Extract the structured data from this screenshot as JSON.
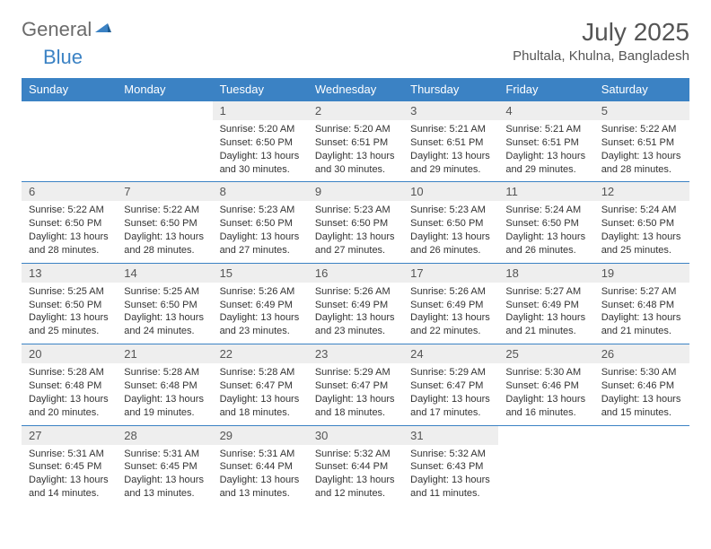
{
  "logo": {
    "text1": "General",
    "text2": "Blue",
    "general_color": "#6b6b6b",
    "blue_color": "#3b82c4"
  },
  "title": "July 2025",
  "location": "Phultala, Khulna, Bangladesh",
  "colors": {
    "header_bg": "#3b82c4",
    "header_text": "#ffffff",
    "daynum_bg": "#eeeeee",
    "daynum_text": "#555555",
    "body_text": "#333333",
    "border": "#3b82c4",
    "title_color": "#555555"
  },
  "day_headers": [
    "Sunday",
    "Monday",
    "Tuesday",
    "Wednesday",
    "Thursday",
    "Friday",
    "Saturday"
  ],
  "weeks": [
    [
      {
        "empty": true
      },
      {
        "empty": true
      },
      {
        "num": "1",
        "sunrise": "Sunrise: 5:20 AM",
        "sunset": "Sunset: 6:50 PM",
        "daylight": "Daylight: 13 hours and 30 minutes."
      },
      {
        "num": "2",
        "sunrise": "Sunrise: 5:20 AM",
        "sunset": "Sunset: 6:51 PM",
        "daylight": "Daylight: 13 hours and 30 minutes."
      },
      {
        "num": "3",
        "sunrise": "Sunrise: 5:21 AM",
        "sunset": "Sunset: 6:51 PM",
        "daylight": "Daylight: 13 hours and 29 minutes."
      },
      {
        "num": "4",
        "sunrise": "Sunrise: 5:21 AM",
        "sunset": "Sunset: 6:51 PM",
        "daylight": "Daylight: 13 hours and 29 minutes."
      },
      {
        "num": "5",
        "sunrise": "Sunrise: 5:22 AM",
        "sunset": "Sunset: 6:51 PM",
        "daylight": "Daylight: 13 hours and 28 minutes."
      }
    ],
    [
      {
        "num": "6",
        "sunrise": "Sunrise: 5:22 AM",
        "sunset": "Sunset: 6:50 PM",
        "daylight": "Daylight: 13 hours and 28 minutes."
      },
      {
        "num": "7",
        "sunrise": "Sunrise: 5:22 AM",
        "sunset": "Sunset: 6:50 PM",
        "daylight": "Daylight: 13 hours and 28 minutes."
      },
      {
        "num": "8",
        "sunrise": "Sunrise: 5:23 AM",
        "sunset": "Sunset: 6:50 PM",
        "daylight": "Daylight: 13 hours and 27 minutes."
      },
      {
        "num": "9",
        "sunrise": "Sunrise: 5:23 AM",
        "sunset": "Sunset: 6:50 PM",
        "daylight": "Daylight: 13 hours and 27 minutes."
      },
      {
        "num": "10",
        "sunrise": "Sunrise: 5:23 AM",
        "sunset": "Sunset: 6:50 PM",
        "daylight": "Daylight: 13 hours and 26 minutes."
      },
      {
        "num": "11",
        "sunrise": "Sunrise: 5:24 AM",
        "sunset": "Sunset: 6:50 PM",
        "daylight": "Daylight: 13 hours and 26 minutes."
      },
      {
        "num": "12",
        "sunrise": "Sunrise: 5:24 AM",
        "sunset": "Sunset: 6:50 PM",
        "daylight": "Daylight: 13 hours and 25 minutes."
      }
    ],
    [
      {
        "num": "13",
        "sunrise": "Sunrise: 5:25 AM",
        "sunset": "Sunset: 6:50 PM",
        "daylight": "Daylight: 13 hours and 25 minutes."
      },
      {
        "num": "14",
        "sunrise": "Sunrise: 5:25 AM",
        "sunset": "Sunset: 6:50 PM",
        "daylight": "Daylight: 13 hours and 24 minutes."
      },
      {
        "num": "15",
        "sunrise": "Sunrise: 5:26 AM",
        "sunset": "Sunset: 6:49 PM",
        "daylight": "Daylight: 13 hours and 23 minutes."
      },
      {
        "num": "16",
        "sunrise": "Sunrise: 5:26 AM",
        "sunset": "Sunset: 6:49 PM",
        "daylight": "Daylight: 13 hours and 23 minutes."
      },
      {
        "num": "17",
        "sunrise": "Sunrise: 5:26 AM",
        "sunset": "Sunset: 6:49 PM",
        "daylight": "Daylight: 13 hours and 22 minutes."
      },
      {
        "num": "18",
        "sunrise": "Sunrise: 5:27 AM",
        "sunset": "Sunset: 6:49 PM",
        "daylight": "Daylight: 13 hours and 21 minutes."
      },
      {
        "num": "19",
        "sunrise": "Sunrise: 5:27 AM",
        "sunset": "Sunset: 6:48 PM",
        "daylight": "Daylight: 13 hours and 21 minutes."
      }
    ],
    [
      {
        "num": "20",
        "sunrise": "Sunrise: 5:28 AM",
        "sunset": "Sunset: 6:48 PM",
        "daylight": "Daylight: 13 hours and 20 minutes."
      },
      {
        "num": "21",
        "sunrise": "Sunrise: 5:28 AM",
        "sunset": "Sunset: 6:48 PM",
        "daylight": "Daylight: 13 hours and 19 minutes."
      },
      {
        "num": "22",
        "sunrise": "Sunrise: 5:28 AM",
        "sunset": "Sunset: 6:47 PM",
        "daylight": "Daylight: 13 hours and 18 minutes."
      },
      {
        "num": "23",
        "sunrise": "Sunrise: 5:29 AM",
        "sunset": "Sunset: 6:47 PM",
        "daylight": "Daylight: 13 hours and 18 minutes."
      },
      {
        "num": "24",
        "sunrise": "Sunrise: 5:29 AM",
        "sunset": "Sunset: 6:47 PM",
        "daylight": "Daylight: 13 hours and 17 minutes."
      },
      {
        "num": "25",
        "sunrise": "Sunrise: 5:30 AM",
        "sunset": "Sunset: 6:46 PM",
        "daylight": "Daylight: 13 hours and 16 minutes."
      },
      {
        "num": "26",
        "sunrise": "Sunrise: 5:30 AM",
        "sunset": "Sunset: 6:46 PM",
        "daylight": "Daylight: 13 hours and 15 minutes."
      }
    ],
    [
      {
        "num": "27",
        "sunrise": "Sunrise: 5:31 AM",
        "sunset": "Sunset: 6:45 PM",
        "daylight": "Daylight: 13 hours and 14 minutes."
      },
      {
        "num": "28",
        "sunrise": "Sunrise: 5:31 AM",
        "sunset": "Sunset: 6:45 PM",
        "daylight": "Daylight: 13 hours and 13 minutes."
      },
      {
        "num": "29",
        "sunrise": "Sunrise: 5:31 AM",
        "sunset": "Sunset: 6:44 PM",
        "daylight": "Daylight: 13 hours and 13 minutes."
      },
      {
        "num": "30",
        "sunrise": "Sunrise: 5:32 AM",
        "sunset": "Sunset: 6:44 PM",
        "daylight": "Daylight: 13 hours and 12 minutes."
      },
      {
        "num": "31",
        "sunrise": "Sunrise: 5:32 AM",
        "sunset": "Sunset: 6:43 PM",
        "daylight": "Daylight: 13 hours and 11 minutes."
      },
      {
        "empty": true
      },
      {
        "empty": true
      }
    ]
  ]
}
